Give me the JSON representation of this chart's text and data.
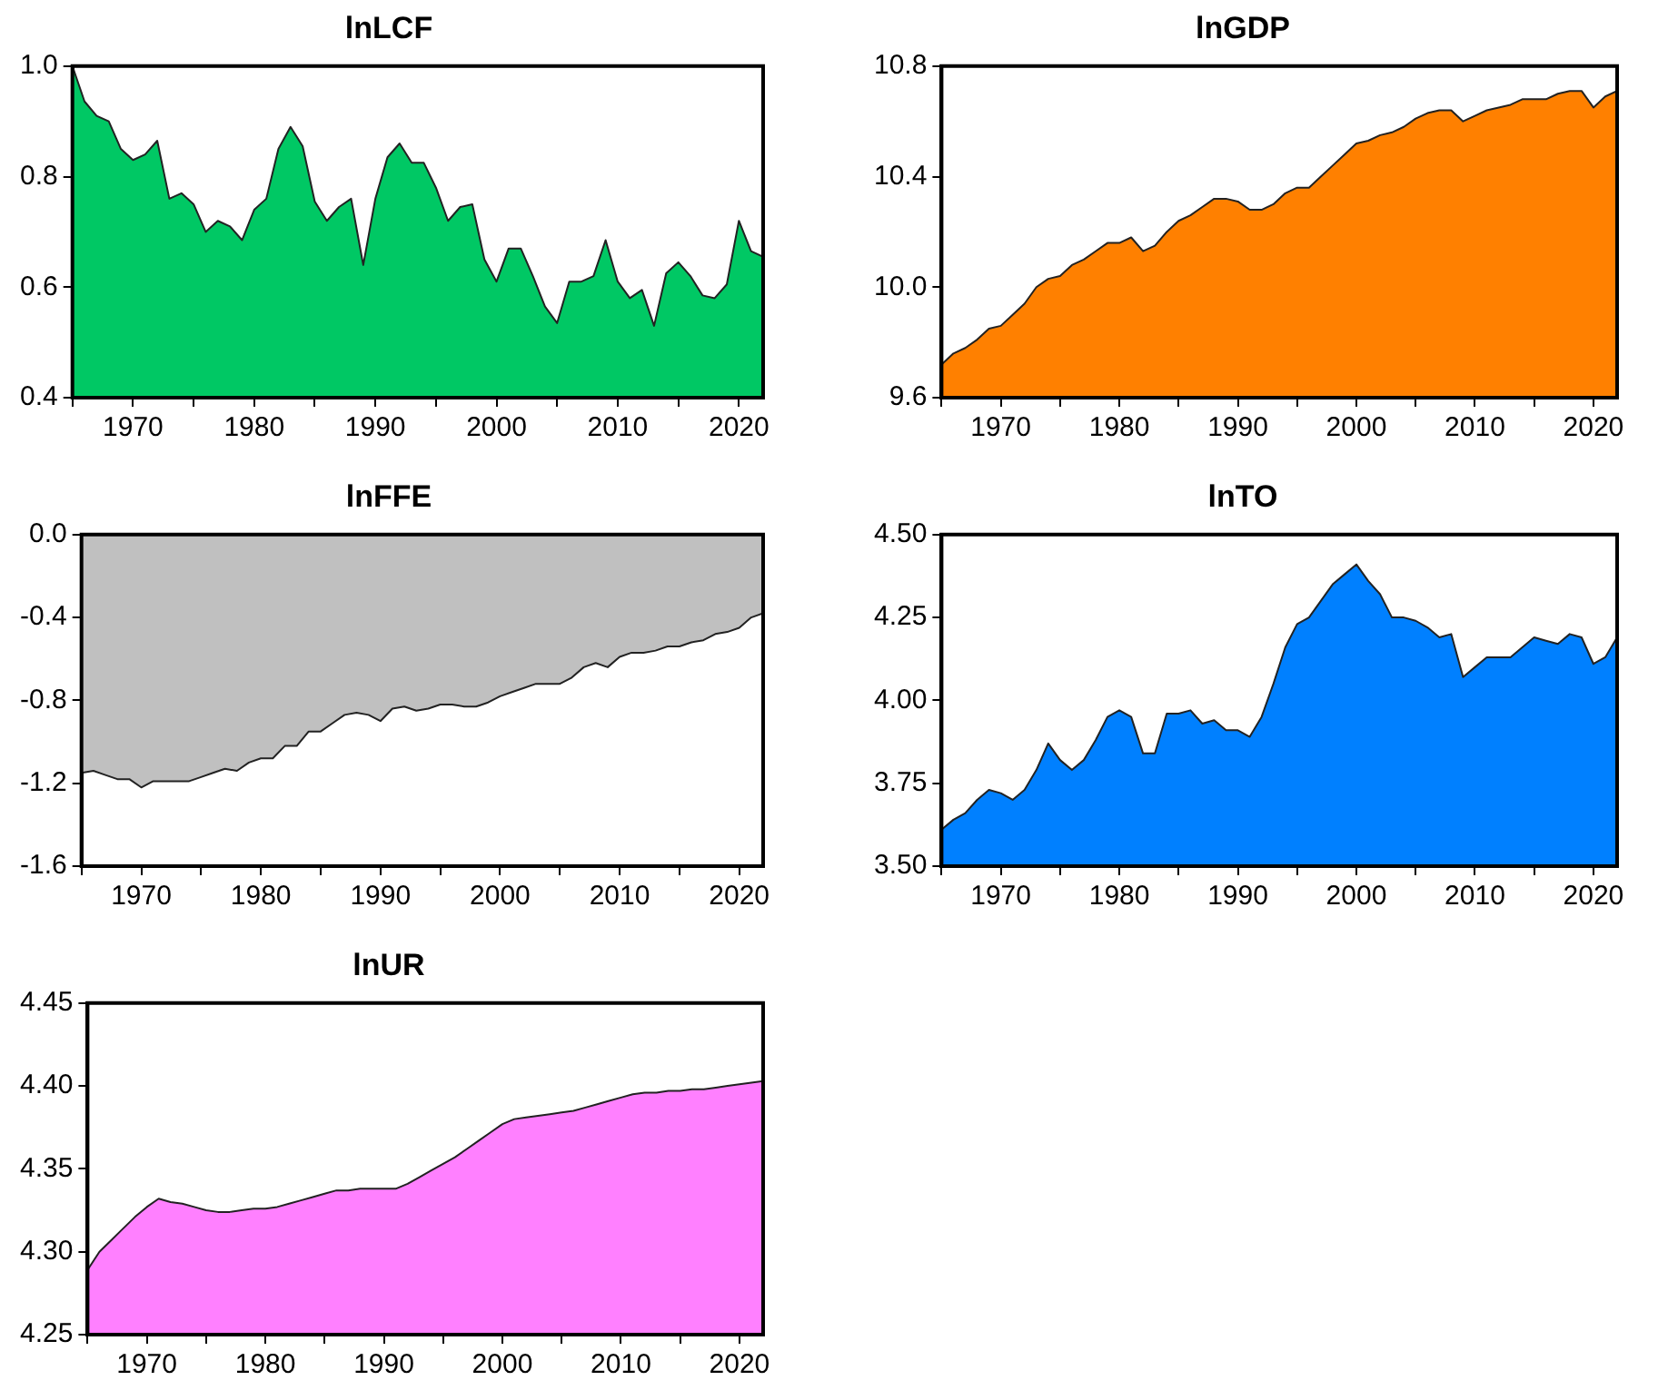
{
  "chart_data": [
    {
      "type": "area",
      "title": "lnLCF",
      "color": "#00c864",
      "grid": false,
      "x": [
        1965,
        1966,
        1967,
        1968,
        1969,
        1970,
        1971,
        1972,
        1973,
        1974,
        1975,
        1976,
        1977,
        1978,
        1979,
        1980,
        1981,
        1982,
        1983,
        1984,
        1985,
        1986,
        1987,
        1988,
        1989,
        1990,
        1991,
        1992,
        1993,
        1994,
        1995,
        1996,
        1997,
        1998,
        1999,
        2000,
        2001,
        2002,
        2003,
        2004,
        2005,
        2006,
        2007,
        2008,
        2009,
        2010,
        2011,
        2012,
        2013,
        2014,
        2015,
        2016,
        2017,
        2018,
        2019,
        2020,
        2021,
        2022
      ],
      "values": [
        1.0,
        0.936,
        0.91,
        0.9,
        0.85,
        0.83,
        0.84,
        0.865,
        0.76,
        0.77,
        0.75,
        0.7,
        0.72,
        0.71,
        0.685,
        0.74,
        0.76,
        0.85,
        0.89,
        0.855,
        0.755,
        0.72,
        0.745,
        0.76,
        0.64,
        0.76,
        0.835,
        0.86,
        0.825,
        0.825,
        0.78,
        0.72,
        0.745,
        0.75,
        0.65,
        0.61,
        0.67,
        0.67,
        0.62,
        0.565,
        0.535,
        0.61,
        0.61,
        0.62,
        0.685,
        0.61,
        0.58,
        0.595,
        0.53,
        0.625,
        0.645,
        0.62,
        0.585,
        0.58,
        0.605,
        0.72,
        0.665,
        0.655
      ],
      "xlim": [
        1965,
        2022
      ],
      "xticks": [
        {
          "value": 1965,
          "label": null
        },
        1970,
        {
          "value": 1975,
          "label": null
        },
        1980,
        {
          "value": 1985,
          "label": null
        },
        1990,
        {
          "value": 1995,
          "label": null
        },
        2000,
        {
          "value": 2005,
          "label": null
        },
        2010,
        {
          "value": 2015,
          "label": null
        },
        2020
      ],
      "ylim": [
        0.4,
        1.0
      ],
      "yticks": [
        0.4,
        0.6,
        0.8,
        {
          "value": 1,
          "label": "1.0"
        }
      ]
    },
    {
      "type": "area",
      "title": "lnGDP",
      "color": "#ff8000",
      "grid": false,
      "x": [
        1965,
        1966,
        1967,
        1968,
        1969,
        1970,
        1971,
        1972,
        1973,
        1974,
        1975,
        1976,
        1977,
        1978,
        1979,
        1980,
        1981,
        1982,
        1983,
        1984,
        1985,
        1986,
        1987,
        1988,
        1989,
        1990,
        1991,
        1992,
        1993,
        1994,
        1995,
        1996,
        1997,
        1998,
        1999,
        2000,
        2001,
        2002,
        2003,
        2004,
        2005,
        2006,
        2007,
        2008,
        2009,
        2010,
        2011,
        2012,
        2013,
        2014,
        2015,
        2016,
        2017,
        2018,
        2019,
        2020,
        2021,
        2022
      ],
      "values": [
        9.72,
        9.76,
        9.78,
        9.81,
        9.85,
        9.86,
        9.9,
        9.94,
        10.0,
        10.03,
        10.04,
        10.08,
        10.1,
        10.13,
        10.16,
        10.16,
        10.18,
        10.13,
        10.15,
        10.2,
        10.24,
        10.26,
        10.29,
        10.32,
        10.32,
        10.31,
        10.28,
        10.28,
        10.3,
        10.34,
        10.36,
        10.36,
        10.4,
        10.44,
        10.48,
        10.52,
        10.53,
        10.55,
        10.56,
        10.58,
        10.61,
        10.63,
        10.64,
        10.64,
        10.6,
        10.62,
        10.64,
        10.65,
        10.66,
        10.68,
        10.68,
        10.68,
        10.7,
        10.71,
        10.71,
        10.65,
        10.69,
        10.71
      ],
      "xlim": [
        1965,
        2022
      ],
      "xticks": [
        {
          "value": 1965,
          "label": null
        },
        1970,
        {
          "value": 1975,
          "label": null
        },
        1980,
        {
          "value": 1985,
          "label": null
        },
        1990,
        {
          "value": 1995,
          "label": null
        },
        2000,
        {
          "value": 2005,
          "label": null
        },
        2010,
        {
          "value": 2015,
          "label": null
        },
        2020
      ],
      "ylim": [
        9.6,
        10.8
      ],
      "yticks": [
        9.6,
        {
          "value": 10,
          "label": "10.0"
        },
        10.4,
        10.8
      ]
    },
    {
      "type": "area",
      "title": "lnFFE",
      "color": "#c0c0c0",
      "grid": false,
      "x": [
        1965,
        1966,
        1967,
        1968,
        1969,
        1970,
        1971,
        1972,
        1973,
        1974,
        1975,
        1976,
        1977,
        1978,
        1979,
        1980,
        1981,
        1982,
        1983,
        1984,
        1985,
        1986,
        1987,
        1988,
        1989,
        1990,
        1991,
        1992,
        1993,
        1994,
        1995,
        1996,
        1997,
        1998,
        1999,
        2000,
        2001,
        2002,
        2003,
        2004,
        2005,
        2006,
        2007,
        2008,
        2009,
        2010,
        2011,
        2012,
        2013,
        2014,
        2015,
        2016,
        2017,
        2018,
        2019,
        2020,
        2021,
        2022
      ],
      "values": [
        -1.15,
        -1.14,
        -1.16,
        -1.18,
        -1.18,
        -1.22,
        -1.19,
        -1.19,
        -1.19,
        -1.19,
        -1.17,
        -1.15,
        -1.13,
        -1.14,
        -1.1,
        -1.08,
        -1.08,
        -1.02,
        -1.02,
        -0.95,
        -0.95,
        -0.91,
        -0.87,
        -0.86,
        -0.87,
        -0.9,
        -0.84,
        -0.83,
        -0.85,
        -0.84,
        -0.82,
        -0.82,
        -0.83,
        -0.83,
        -0.81,
        -0.78,
        -0.76,
        -0.74,
        -0.72,
        -0.72,
        -0.72,
        -0.69,
        -0.64,
        -0.62,
        -0.64,
        -0.59,
        -0.57,
        -0.57,
        -0.56,
        -0.54,
        -0.54,
        -0.52,
        -0.51,
        -0.48,
        -0.47,
        -0.45,
        -0.4,
        -0.38
      ],
      "xlim": [
        1965,
        2022
      ],
      "xticks": [
        {
          "value": 1965,
          "label": null
        },
        1970,
        {
          "value": 1975,
          "label": null
        },
        1980,
        {
          "value": 1985,
          "label": null
        },
        1990,
        {
          "value": 1995,
          "label": null
        },
        2000,
        {
          "value": 2005,
          "label": null
        },
        2010,
        {
          "value": 2015,
          "label": null
        },
        2020
      ],
      "ylim": [
        -1.6,
        0.0
      ],
      "yticks": [
        -1.6,
        -1.2,
        -0.8,
        -0.4,
        {
          "value": 0,
          "label": "0.0"
        }
      ]
    },
    {
      "type": "area",
      "title": "lnTO",
      "color": "#0080ff",
      "grid": false,
      "x": [
        1965,
        1966,
        1967,
        1968,
        1969,
        1970,
        1971,
        1972,
        1973,
        1974,
        1975,
        1976,
        1977,
        1978,
        1979,
        1980,
        1981,
        1982,
        1983,
        1984,
        1985,
        1986,
        1987,
        1988,
        1989,
        1990,
        1991,
        1992,
        1993,
        1994,
        1995,
        1996,
        1997,
        1998,
        1999,
        2000,
        2001,
        2002,
        2003,
        2004,
        2005,
        2006,
        2007,
        2008,
        2009,
        2010,
        2011,
        2012,
        2013,
        2014,
        2015,
        2016,
        2017,
        2018,
        2019,
        2020,
        2021,
        2022
      ],
      "values": [
        3.61,
        3.64,
        3.66,
        3.7,
        3.73,
        3.72,
        3.7,
        3.73,
        3.79,
        3.87,
        3.82,
        3.79,
        3.82,
        3.88,
        3.95,
        3.97,
        3.95,
        3.84,
        3.84,
        3.96,
        3.96,
        3.97,
        3.93,
        3.94,
        3.91,
        3.91,
        3.89,
        3.95,
        4.05,
        4.16,
        4.23,
        4.25,
        4.3,
        4.35,
        4.38,
        4.41,
        4.36,
        4.32,
        4.25,
        4.25,
        4.24,
        4.22,
        4.19,
        4.2,
        4.07,
        4.1,
        4.13,
        4.13,
        4.13,
        4.16,
        4.19,
        4.18,
        4.17,
        4.2,
        4.19,
        4.11,
        4.13,
        4.19
      ],
      "xlim": [
        1965,
        2022
      ],
      "xticks": [
        {
          "value": 1965,
          "label": null
        },
        1970,
        {
          "value": 1975,
          "label": null
        },
        1980,
        {
          "value": 1985,
          "label": null
        },
        1990,
        {
          "value": 1995,
          "label": null
        },
        2000,
        {
          "value": 2005,
          "label": null
        },
        2010,
        {
          "value": 2015,
          "label": null
        },
        2020
      ],
      "ylim": [
        3.5,
        4.5
      ],
      "yticks": [
        {
          "value": 3.5,
          "label": "3.50"
        },
        3.75,
        {
          "value": 4,
          "label": "4.00"
        },
        4.25,
        {
          "value": 4.5,
          "label": "4.50"
        }
      ]
    },
    {
      "type": "area",
      "title": "lnUR",
      "color": "#ff80ff",
      "grid": false,
      "x": [
        1965,
        1966,
        1967,
        1968,
        1969,
        1970,
        1971,
        1972,
        1973,
        1974,
        1975,
        1976,
        1977,
        1978,
        1979,
        1980,
        1981,
        1982,
        1983,
        1984,
        1985,
        1986,
        1987,
        1988,
        1989,
        1990,
        1991,
        1992,
        1993,
        1994,
        1995,
        1996,
        1997,
        1998,
        1999,
        2000,
        2001,
        2002,
        2003,
        2004,
        2005,
        2006,
        2007,
        2008,
        2009,
        2010,
        2011,
        2012,
        2013,
        2014,
        2015,
        2016,
        2017,
        2018,
        2019,
        2020,
        2021,
        2022
      ],
      "values": [
        4.289,
        4.3,
        4.307,
        4.314,
        4.321,
        4.327,
        4.332,
        4.33,
        4.329,
        4.327,
        4.325,
        4.324,
        4.324,
        4.325,
        4.326,
        4.326,
        4.327,
        4.329,
        4.331,
        4.333,
        4.335,
        4.337,
        4.337,
        4.338,
        4.338,
        4.338,
        4.338,
        4.341,
        4.345,
        4.349,
        4.353,
        4.357,
        4.362,
        4.367,
        4.372,
        4.377,
        4.38,
        4.381,
        4.382,
        4.383,
        4.384,
        4.385,
        4.387,
        4.389,
        4.391,
        4.393,
        4.395,
        4.396,
        4.396,
        4.397,
        4.397,
        4.398,
        4.398,
        4.399,
        4.4,
        4.401,
        4.402,
        4.403
      ],
      "xlim": [
        1965,
        2022
      ],
      "xticks": [
        {
          "value": 1965,
          "label": null
        },
        1970,
        {
          "value": 1975,
          "label": null
        },
        1980,
        {
          "value": 1985,
          "label": null
        },
        1990,
        {
          "value": 1995,
          "label": null
        },
        2000,
        {
          "value": 2005,
          "label": null
        },
        2010,
        {
          "value": 2015,
          "label": null
        },
        2020
      ],
      "ylim": [
        4.25,
        4.45
      ],
      "yticks": [
        4.25,
        {
          "value": 4.3,
          "label": "4.30"
        },
        4.35,
        {
          "value": 4.4,
          "label": "4.40"
        },
        4.45
      ]
    }
  ]
}
